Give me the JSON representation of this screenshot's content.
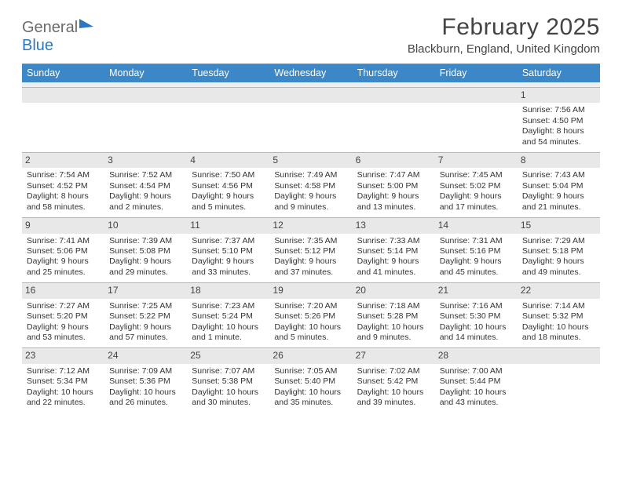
{
  "colors": {
    "header_bar": "#3b87c8",
    "daynum_bg": "#e8e8e8",
    "daynum_border": "#b8b8b8",
    "logo_gray": "#6b6b6b",
    "logo_blue": "#2a78bf",
    "text": "#333333",
    "background": "#ffffff"
  },
  "typography": {
    "base_fontsize_pt": 10.5,
    "title_fontsize_pt": 30,
    "weekday_fontsize_pt": 12.5
  },
  "logo": {
    "text1": "General",
    "text2": "Blue"
  },
  "title": "February 2025",
  "location": "Blackburn, England, United Kingdom",
  "weekdays": [
    "Sunday",
    "Monday",
    "Tuesday",
    "Wednesday",
    "Thursday",
    "Friday",
    "Saturday"
  ],
  "weeks": [
    [
      {
        "n": "",
        "empty": true
      },
      {
        "n": "",
        "empty": true
      },
      {
        "n": "",
        "empty": true
      },
      {
        "n": "",
        "empty": true
      },
      {
        "n": "",
        "empty": true
      },
      {
        "n": "",
        "empty": true
      },
      {
        "n": "1",
        "sunrise": "Sunrise: 7:56 AM",
        "sunset": "Sunset: 4:50 PM",
        "daylight": "Daylight: 8 hours and 54 minutes."
      }
    ],
    [
      {
        "n": "2",
        "sunrise": "Sunrise: 7:54 AM",
        "sunset": "Sunset: 4:52 PM",
        "daylight": "Daylight: 8 hours and 58 minutes."
      },
      {
        "n": "3",
        "sunrise": "Sunrise: 7:52 AM",
        "sunset": "Sunset: 4:54 PM",
        "daylight": "Daylight: 9 hours and 2 minutes."
      },
      {
        "n": "4",
        "sunrise": "Sunrise: 7:50 AM",
        "sunset": "Sunset: 4:56 PM",
        "daylight": "Daylight: 9 hours and 5 minutes."
      },
      {
        "n": "5",
        "sunrise": "Sunrise: 7:49 AM",
        "sunset": "Sunset: 4:58 PM",
        "daylight": "Daylight: 9 hours and 9 minutes."
      },
      {
        "n": "6",
        "sunrise": "Sunrise: 7:47 AM",
        "sunset": "Sunset: 5:00 PM",
        "daylight": "Daylight: 9 hours and 13 minutes."
      },
      {
        "n": "7",
        "sunrise": "Sunrise: 7:45 AM",
        "sunset": "Sunset: 5:02 PM",
        "daylight": "Daylight: 9 hours and 17 minutes."
      },
      {
        "n": "8",
        "sunrise": "Sunrise: 7:43 AM",
        "sunset": "Sunset: 5:04 PM",
        "daylight": "Daylight: 9 hours and 21 minutes."
      }
    ],
    [
      {
        "n": "9",
        "sunrise": "Sunrise: 7:41 AM",
        "sunset": "Sunset: 5:06 PM",
        "daylight": "Daylight: 9 hours and 25 minutes."
      },
      {
        "n": "10",
        "sunrise": "Sunrise: 7:39 AM",
        "sunset": "Sunset: 5:08 PM",
        "daylight": "Daylight: 9 hours and 29 minutes."
      },
      {
        "n": "11",
        "sunrise": "Sunrise: 7:37 AM",
        "sunset": "Sunset: 5:10 PM",
        "daylight": "Daylight: 9 hours and 33 minutes."
      },
      {
        "n": "12",
        "sunrise": "Sunrise: 7:35 AM",
        "sunset": "Sunset: 5:12 PM",
        "daylight": "Daylight: 9 hours and 37 minutes."
      },
      {
        "n": "13",
        "sunrise": "Sunrise: 7:33 AM",
        "sunset": "Sunset: 5:14 PM",
        "daylight": "Daylight: 9 hours and 41 minutes."
      },
      {
        "n": "14",
        "sunrise": "Sunrise: 7:31 AM",
        "sunset": "Sunset: 5:16 PM",
        "daylight": "Daylight: 9 hours and 45 minutes."
      },
      {
        "n": "15",
        "sunrise": "Sunrise: 7:29 AM",
        "sunset": "Sunset: 5:18 PM",
        "daylight": "Daylight: 9 hours and 49 minutes."
      }
    ],
    [
      {
        "n": "16",
        "sunrise": "Sunrise: 7:27 AM",
        "sunset": "Sunset: 5:20 PM",
        "daylight": "Daylight: 9 hours and 53 minutes."
      },
      {
        "n": "17",
        "sunrise": "Sunrise: 7:25 AM",
        "sunset": "Sunset: 5:22 PM",
        "daylight": "Daylight: 9 hours and 57 minutes."
      },
      {
        "n": "18",
        "sunrise": "Sunrise: 7:23 AM",
        "sunset": "Sunset: 5:24 PM",
        "daylight": "Daylight: 10 hours and 1 minute."
      },
      {
        "n": "19",
        "sunrise": "Sunrise: 7:20 AM",
        "sunset": "Sunset: 5:26 PM",
        "daylight": "Daylight: 10 hours and 5 minutes."
      },
      {
        "n": "20",
        "sunrise": "Sunrise: 7:18 AM",
        "sunset": "Sunset: 5:28 PM",
        "daylight": "Daylight: 10 hours and 9 minutes."
      },
      {
        "n": "21",
        "sunrise": "Sunrise: 7:16 AM",
        "sunset": "Sunset: 5:30 PM",
        "daylight": "Daylight: 10 hours and 14 minutes."
      },
      {
        "n": "22",
        "sunrise": "Sunrise: 7:14 AM",
        "sunset": "Sunset: 5:32 PM",
        "daylight": "Daylight: 10 hours and 18 minutes."
      }
    ],
    [
      {
        "n": "23",
        "sunrise": "Sunrise: 7:12 AM",
        "sunset": "Sunset: 5:34 PM",
        "daylight": "Daylight: 10 hours and 22 minutes."
      },
      {
        "n": "24",
        "sunrise": "Sunrise: 7:09 AM",
        "sunset": "Sunset: 5:36 PM",
        "daylight": "Daylight: 10 hours and 26 minutes."
      },
      {
        "n": "25",
        "sunrise": "Sunrise: 7:07 AM",
        "sunset": "Sunset: 5:38 PM",
        "daylight": "Daylight: 10 hours and 30 minutes."
      },
      {
        "n": "26",
        "sunrise": "Sunrise: 7:05 AM",
        "sunset": "Sunset: 5:40 PM",
        "daylight": "Daylight: 10 hours and 35 minutes."
      },
      {
        "n": "27",
        "sunrise": "Sunrise: 7:02 AM",
        "sunset": "Sunset: 5:42 PM",
        "daylight": "Daylight: 10 hours and 39 minutes."
      },
      {
        "n": "28",
        "sunrise": "Sunrise: 7:00 AM",
        "sunset": "Sunset: 5:44 PM",
        "daylight": "Daylight: 10 hours and 43 minutes."
      },
      {
        "n": "",
        "empty": true
      }
    ]
  ]
}
